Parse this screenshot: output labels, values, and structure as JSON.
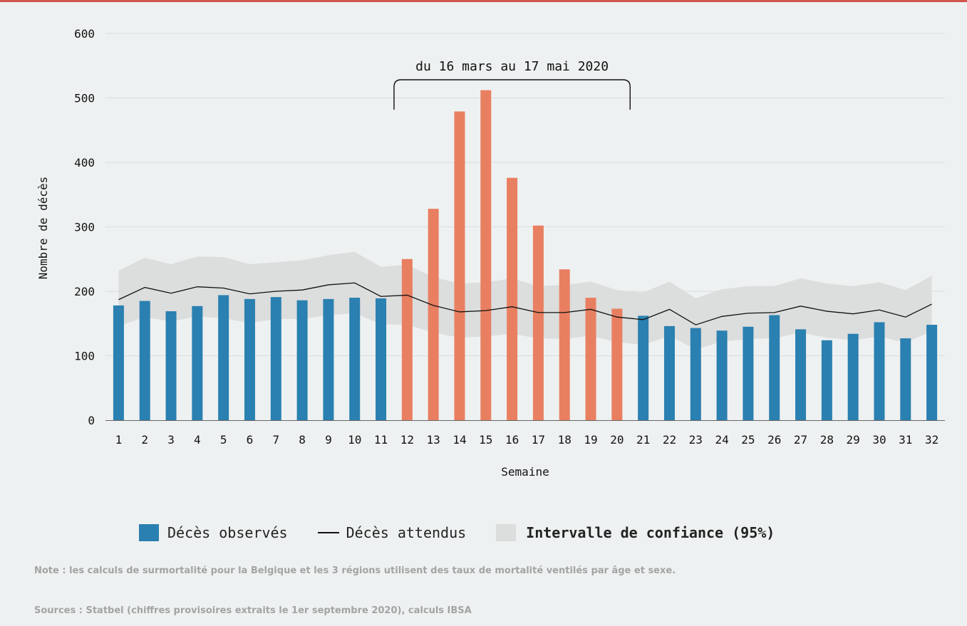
{
  "chart_data": {
    "type": "bar",
    "xlabel": "Semaine",
    "ylabel": "Nombre de décès",
    "ylim": [
      0,
      600
    ],
    "yticks": [
      0,
      100,
      200,
      300,
      400,
      500,
      600
    ],
    "categories": [
      "1",
      "2",
      "3",
      "4",
      "5",
      "6",
      "7",
      "8",
      "9",
      "10",
      "11",
      "12",
      "13",
      "14",
      "15",
      "16",
      "17",
      "18",
      "19",
      "20",
      "21",
      "22",
      "23",
      "24",
      "25",
      "26",
      "27",
      "28",
      "29",
      "30",
      "31",
      "32"
    ],
    "series": [
      {
        "name": "Décès observés",
        "type": "bar",
        "values": [
          178,
          185,
          169,
          177,
          194,
          188,
          191,
          186,
          188,
          190,
          189,
          250,
          328,
          479,
          512,
          376,
          302,
          234,
          190,
          173,
          162,
          146,
          143,
          139,
          145,
          163,
          141,
          124,
          134,
          152,
          127,
          148
        ]
      },
      {
        "name": "Décès attendus",
        "type": "line",
        "values": [
          187,
          206,
          197,
          207,
          205,
          196,
          200,
          202,
          210,
          213,
          192,
          194,
          178,
          168,
          170,
          176,
          167,
          167,
          172,
          160,
          156,
          172,
          148,
          161,
          166,
          167,
          177,
          169,
          165,
          171,
          160,
          180
        ]
      },
      {
        "name": "Intervalle de confiance (95%)",
        "type": "band",
        "upper": [
          232,
          252,
          242,
          254,
          253,
          242,
          245,
          248,
          256,
          261,
          238,
          241,
          222,
          212,
          214,
          220,
          208,
          210,
          215,
          202,
          198,
          215,
          189,
          203,
          208,
          208,
          220,
          212,
          208,
          214,
          202,
          224
        ],
        "lower": [
          146,
          160,
          153,
          161,
          158,
          151,
          157,
          157,
          163,
          166,
          149,
          148,
          136,
          128,
          130,
          134,
          127,
          126,
          131,
          121,
          117,
          131,
          110,
          122,
          126,
          127,
          136,
          128,
          124,
          130,
          120,
          138
        ]
      }
    ],
    "highlight": {
      "from": "12",
      "to": "20",
      "label": "du 16 mars au 17 mai 2020"
    },
    "colors": {
      "bar": "#2a80b0",
      "bar_highlight": "#e97f61",
      "line": "#111111",
      "band": "#dcdddd",
      "grid": "#d9dddd"
    }
  },
  "legend": {
    "observed": "Décès observés",
    "expected": "Décès attendus",
    "interval": "Intervalle de confiance (95%)"
  },
  "notes": {
    "note": "Note : les calculs de surmortalité pour la Belgique et les 3 régions utilisent des taux de mortalité ventilés par âge et sexe.",
    "sources": "Sources : Statbel (chiffres provisoires extraits le 1er septembre 2020), calculs IBSA"
  }
}
